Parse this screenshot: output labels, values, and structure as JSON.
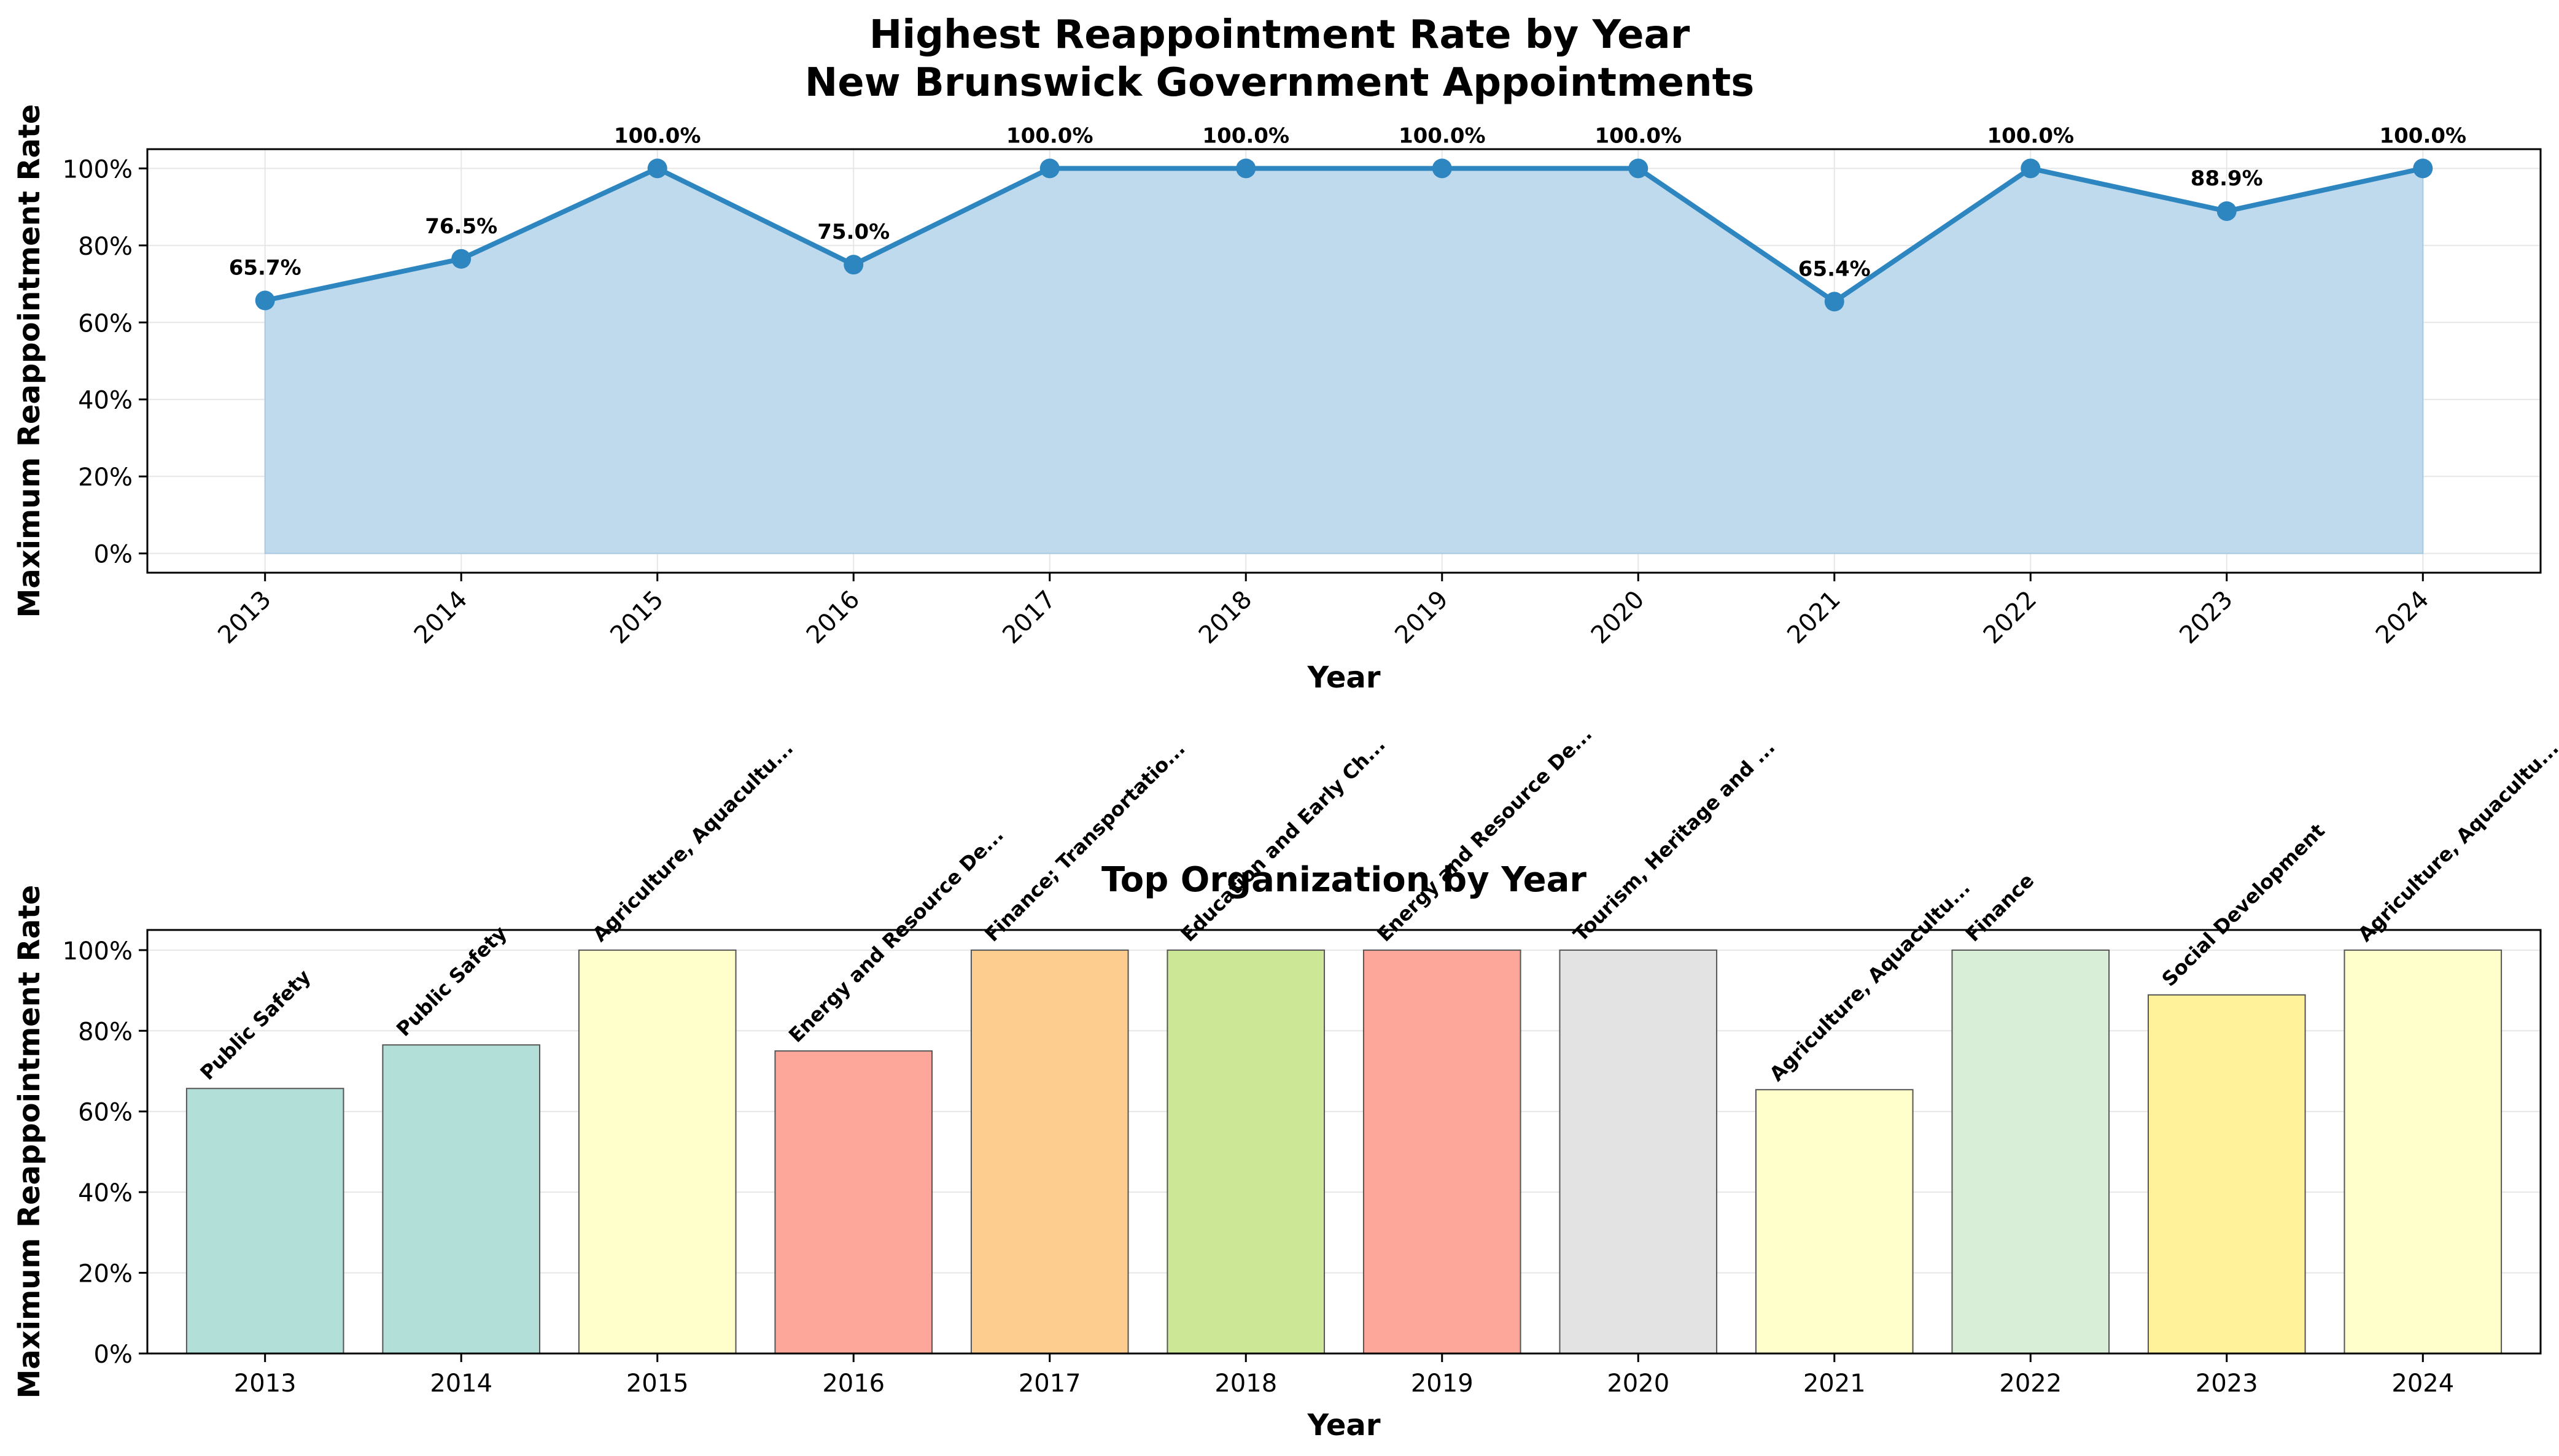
{
  "figure": {
    "title_line1": "Highest Reappointment Rate by Year",
    "title_line2": "New Brunswick Government Appointments"
  },
  "chart_data": [
    {
      "type": "line",
      "title": "",
      "xlabel": "Year",
      "ylabel": "Maximum Reappointment Rate",
      "x": [
        "2013",
        "2014",
        "2015",
        "2016",
        "2017",
        "2018",
        "2019",
        "2020",
        "2021",
        "2022",
        "2023",
        "2024"
      ],
      "values": [
        65.7,
        76.5,
        100.0,
        75.0,
        100.0,
        100.0,
        100.0,
        100.0,
        65.4,
        100.0,
        88.9,
        100.0
      ],
      "data_labels": [
        "65.7%",
        "76.5%",
        "100.0%",
        "75.0%",
        "100.0%",
        "100.0%",
        "100.0%",
        "100.0%",
        "65.4%",
        "100.0%",
        "88.9%",
        "100.0%"
      ],
      "ylim": [
        -5,
        105
      ],
      "yticks": [
        0,
        20,
        40,
        60,
        80,
        100
      ],
      "ytick_labels": [
        "0%",
        "20%",
        "40%",
        "60%",
        "80%",
        "100%"
      ],
      "grid": true,
      "fill_under": true,
      "colors": {
        "line": "#2e86c1",
        "fill": "#bfdaed"
      }
    },
    {
      "type": "bar",
      "title": "Top Organization by Year",
      "xlabel": "Year",
      "ylabel": "Maximum Reappointment Rate",
      "categories": [
        "2013",
        "2014",
        "2015",
        "2016",
        "2017",
        "2018",
        "2019",
        "2020",
        "2021",
        "2022",
        "2023",
        "2024"
      ],
      "values": [
        65.7,
        76.5,
        100.0,
        75.0,
        100.0,
        100.0,
        100.0,
        100.0,
        65.4,
        100.0,
        88.9,
        100.0
      ],
      "bar_labels": [
        "Public Safety",
        "Public Safety",
        "Agriculture, Aquacultu...",
        "Energy and Resource De...",
        "Finance; Transportatio...",
        "Education and Early Ch...",
        "Energy and Resource De...",
        "Tourism, Heritage and ...",
        "Agriculture, Aquacultu...",
        "Finance",
        "Social Development",
        "Agriculture, Aquacultu..."
      ],
      "ylim": [
        0,
        105
      ],
      "yticks": [
        0,
        20,
        40,
        60,
        80,
        100
      ],
      "ytick_labels": [
        "0%",
        "20%",
        "40%",
        "60%",
        "80%",
        "100%"
      ],
      "grid": true,
      "colors": [
        "#b2dfd8",
        "#b2dfd8",
        "#ffffcc",
        "#fca79a",
        "#fdcc8f",
        "#cce896",
        "#fca79a",
        "#e3e3e3",
        "#ffffcc",
        "#d9eed6",
        "#fff29a",
        "#ffffcc"
      ]
    }
  ]
}
